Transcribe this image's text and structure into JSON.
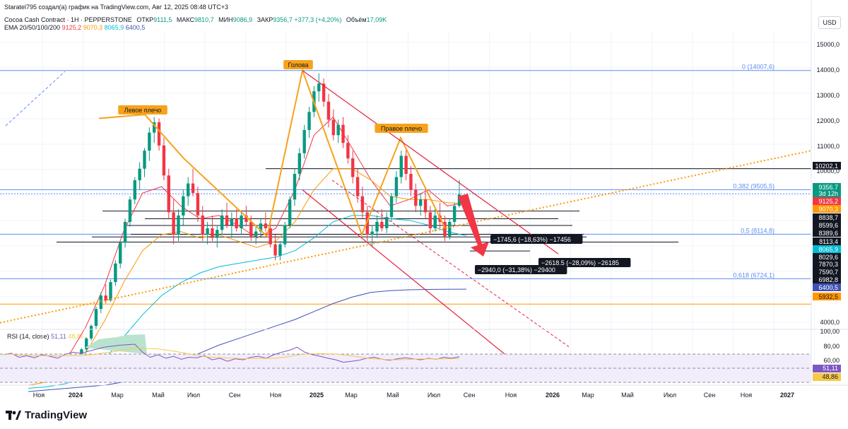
{
  "header": {
    "attribution": "Staratel795 создал(а) график на TradingView.com, Авг 12, 2025 08:48 UTC+3",
    "symbol": "Cocoa Cash Contract · 1H · PEPPERSTONE",
    "open_label": "ОТКР",
    "open": "9111,5",
    "high_label": "МАКС",
    "high": "9810,7",
    "low_label": "МИН",
    "low": "9086,9",
    "close_label": "ЗАКР",
    "close": "9356,7",
    "change": "+377,3 (+4,20%)",
    "volume_label": "Объём",
    "volume": "17,09K",
    "ema_label": "EMA 20/50/100/200",
    "ema_values": [
      "9125,2",
      "9070,3",
      "8065,9",
      "6400,5"
    ],
    "currency": "USD"
  },
  "rsi": {
    "label": "RSI (14, close)",
    "value1": "51,11",
    "value2": "48,86",
    "axis": [
      "100,00",
      "80,00",
      "60,00"
    ]
  },
  "colors": {
    "up": "#089981",
    "down": "#f23645",
    "ema20": "#f23645",
    "ema50": "#ff9800",
    "ema100": "#00bcd4",
    "ema200": "#3f51b5",
    "pattern": "#f7a21b",
    "channel": "#e91e3c",
    "fib": "#5b8def"
  },
  "chart_data": {
    "type": "candlestick",
    "title": "Cocoa Cash Contract · 1H · PEPPERSTONE",
    "y_ticks": [
      "15000,0",
      "14000,0",
      "13000,0",
      "12000,0",
      "11000,0",
      "10000,0",
      "4000,0"
    ],
    "x_ticks": [
      "Ноя",
      "2024",
      "Мар",
      "Май",
      "Июл",
      "Сен",
      "Ноя",
      "2025",
      "Мар",
      "Май",
      "Июл",
      "Сен",
      "Ноя",
      "2026",
      "Мар",
      "Май",
      "Июл",
      "Сен",
      "Ноя",
      "2027"
    ],
    "price_badges": [
      {
        "text": "10202,1",
        "bg": "#131722",
        "fg": "#ffffff"
      },
      {
        "text": "9356,7",
        "bg": "#089981",
        "fg": "#ffffff"
      },
      {
        "text": "3d 12h",
        "bg": "#089981",
        "fg": "#ffffff"
      },
      {
        "text": "9125,2",
        "bg": "#f23645",
        "fg": "#ffffff"
      },
      {
        "text": "9070,3",
        "bg": "#ff9800",
        "fg": "#ffffff"
      },
      {
        "text": "8838,7",
        "bg": "#131722",
        "fg": "#ffffff"
      },
      {
        "text": "8599,6",
        "bg": "#131722",
        "fg": "#ffffff"
      },
      {
        "text": "8389,6",
        "bg": "#131722",
        "fg": "#ffffff"
      },
      {
        "text": "8113,4",
        "bg": "#131722",
        "fg": "#ffffff"
      },
      {
        "text": "8065,9",
        "bg": "#00bcd4",
        "fg": "#ffffff"
      },
      {
        "text": "8029,6",
        "bg": "#131722",
        "fg": "#ffffff"
      },
      {
        "text": "7870,3",
        "bg": "#131722",
        "fg": "#ffffff"
      },
      {
        "text": "7590,7",
        "bg": "#131722",
        "fg": "#ffffff"
      },
      {
        "text": "6982,8",
        "bg": "#131722",
        "fg": "#ffffff"
      },
      {
        "text": "6400,5",
        "bg": "#3f51b5",
        "fg": "#ffffff"
      },
      {
        "text": "5932,5",
        "bg": "#ff9800",
        "fg": "#131722"
      }
    ],
    "fib_levels": [
      {
        "label": "0 (14007,6)",
        "price": 14007.6
      },
      {
        "label": "0,382 (9505,5)",
        "price": 9505.5
      },
      {
        "label": "0,5 (8114,8)",
        "price": 8114.8
      },
      {
        "label": "0,618 (6724,1)",
        "price": 6724.1
      }
    ],
    "horizontal_levels": [
      10202.1,
      8838.7,
      8599.6,
      8389.6,
      8113.4,
      8029.6,
      7870.3,
      7590.7,
      6982.8,
      5932.5
    ],
    "pattern_labels": [
      "Левое плечо",
      "Голова",
      "Правое плечо"
    ],
    "measurements": [
      "−1745,6 (−18,63%) −17456",
      "−2618,5 (−28,09%) −26185",
      "−2940,0 (−31,38%) −29400"
    ],
    "candles": [
      [
        3600,
        3680,
        3550,
        3650
      ],
      [
        3650,
        3780,
        3600,
        3720
      ],
      [
        3720,
        3800,
        3650,
        3690
      ],
      [
        3690,
        3850,
        3640,
        3820
      ],
      [
        3820,
        3900,
        3760,
        3780
      ],
      [
        3780,
        3920,
        3720,
        3880
      ],
      [
        3880,
        4000,
        3830,
        3960
      ],
      [
        3960,
        4080,
        3900,
        4050
      ],
      [
        4050,
        4150,
        3980,
        4000
      ],
      [
        4000,
        4250,
        3960,
        4210
      ],
      [
        4210,
        4380,
        4150,
        4330
      ],
      [
        4330,
        4560,
        4280,
        4520
      ],
      [
        4520,
        4900,
        4450,
        4860
      ],
      [
        4860,
        5300,
        4800,
        5250
      ],
      [
        5250,
        5850,
        5150,
        5780
      ],
      [
        5780,
        6300,
        5650,
        6200
      ],
      [
        6200,
        6550,
        5950,
        6050
      ],
      [
        6050,
        6700,
        6000,
        6620
      ],
      [
        6620,
        7300,
        6500,
        7200
      ],
      [
        7200,
        7900,
        7050,
        7850
      ],
      [
        7850,
        8600,
        7700,
        8500
      ],
      [
        8500,
        9300,
        8350,
        9200
      ],
      [
        9200,
        9900,
        9050,
        9800
      ],
      [
        9800,
        10450,
        9500,
        10200
      ],
      [
        10200,
        11000,
        9900,
        10900
      ],
      [
        10900,
        11800,
        10500,
        11600
      ],
      [
        11600,
        12200,
        11200,
        12000
      ],
      [
        12000,
        12150,
        10900,
        11100
      ],
      [
        11100,
        11400,
        9800,
        9950
      ],
      [
        9950,
        10200,
        8600,
        8800
      ],
      [
        8800,
        9200,
        7800,
        8100
      ],
      [
        8100,
        8900,
        7900,
        8700
      ],
      [
        8700,
        9500,
        8400,
        9300
      ],
      [
        9300,
        9900,
        9000,
        9700
      ],
      [
        9700,
        10200,
        9300,
        9400
      ],
      [
        9400,
        9600,
        8500,
        8700
      ],
      [
        8700,
        9000,
        7900,
        8100
      ],
      [
        8100,
        8500,
        7800,
        8300
      ],
      [
        8300,
        8700,
        7900,
        8000
      ],
      [
        8000,
        8400,
        7700,
        8250
      ],
      [
        8250,
        8900,
        8100,
        8700
      ],
      [
        8700,
        9100,
        8300,
        8400
      ],
      [
        8400,
        8800,
        8000,
        8600
      ],
      [
        8600,
        8900,
        8200,
        8300
      ],
      [
        8300,
        8800,
        8100,
        8700
      ],
      [
        8700,
        9000,
        8400,
        8500
      ],
      [
        8500,
        8700,
        7900,
        8050
      ],
      [
        8050,
        8400,
        7800,
        8200
      ],
      [
        8200,
        8600,
        8000,
        8450
      ],
      [
        8450,
        8800,
        8200,
        8300
      ],
      [
        8300,
        8500,
        7700,
        7800
      ],
      [
        7800,
        8100,
        7300,
        7450
      ],
      [
        7450,
        7900,
        7300,
        7800
      ],
      [
        7800,
        8500,
        7700,
        8400
      ],
      [
        8400,
        9300,
        8300,
        9200
      ],
      [
        9200,
        10200,
        9000,
        10000
      ],
      [
        10000,
        11000,
        9800,
        10800
      ],
      [
        10800,
        11900,
        10600,
        11700
      ],
      [
        11700,
        12600,
        11400,
        12400
      ],
      [
        12400,
        13400,
        12200,
        13200
      ],
      [
        13200,
        13900,
        12800,
        13500
      ],
      [
        13500,
        13700,
        12600,
        12800
      ],
      [
        12800,
        13100,
        11800,
        12100
      ],
      [
        12100,
        12500,
        11300,
        11500
      ],
      [
        11500,
        12100,
        11200,
        11900
      ],
      [
        11900,
        12200,
        11000,
        11200
      ],
      [
        11200,
        11500,
        10400,
        10600
      ],
      [
        10600,
        10900,
        9700,
        9900
      ],
      [
        9900,
        10200,
        9100,
        9300
      ],
      [
        9300,
        9600,
        8600,
        8800
      ],
      [
        8800,
        9000,
        7900,
        8100
      ],
      [
        8100,
        8400,
        7700,
        8200
      ],
      [
        8200,
        8700,
        8000,
        8500
      ],
      [
        8500,
        8900,
        8200,
        8300
      ],
      [
        8300,
        8800,
        8150,
        8650
      ],
      [
        8650,
        9400,
        8500,
        9300
      ],
      [
        9300,
        10100,
        9100,
        9900
      ],
      [
        9900,
        10900,
        9700,
        10700
      ],
      [
        10700,
        11000,
        9800,
        10000
      ],
      [
        10000,
        10300,
        9300,
        9500
      ],
      [
        9500,
        9700,
        8800,
        9000
      ],
      [
        9000,
        9400,
        8700,
        9200
      ],
      [
        9200,
        9500,
        8600,
        8800
      ],
      [
        8800,
        9000,
        8100,
        8300
      ],
      [
        8300,
        8900,
        8200,
        8700
      ],
      [
        8700,
        9100,
        8300,
        8500
      ],
      [
        8500,
        8700,
        7900,
        8050
      ],
      [
        8050,
        8600,
        7950,
        8500
      ],
      [
        8500,
        9100,
        8400,
        9000
      ],
      [
        9000,
        9810,
        8950,
        9356
      ]
    ]
  }
}
